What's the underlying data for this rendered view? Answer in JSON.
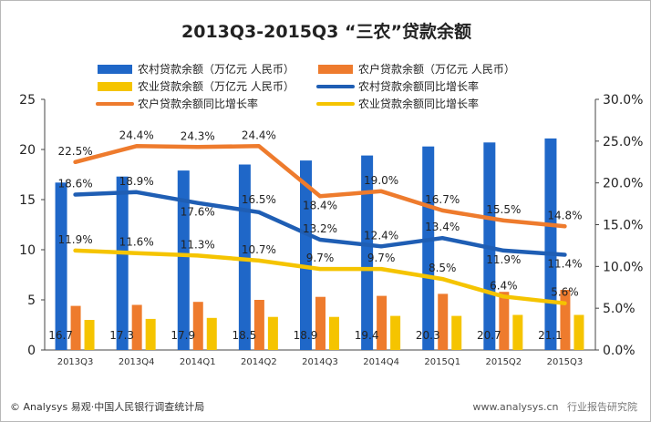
{
  "chart_data": {
    "type": "bar",
    "title": "2013Q3-2015Q3 “三农”贷款余额",
    "categories": [
      "2013Q3",
      "2013Q4",
      "2014Q1",
      "2014Q2",
      "2014Q3",
      "2014Q4",
      "2015Q1",
      "2015Q2",
      "2015Q3"
    ],
    "left_axis": {
      "min": 0,
      "max": 25,
      "ticks": [
        "0",
        "5",
        "10",
        "15",
        "20",
        "25"
      ]
    },
    "right_axis": {
      "min": 0,
      "max": 30,
      "ticks": [
        "0.0%",
        "5.0%",
        "10.0%",
        "15.0%",
        "20.0%",
        "25.0%",
        "30.0%"
      ]
    },
    "bar_series": [
      {
        "name": "农村贷款余额（万亿元 人民币）",
        "color": "#1f67c8",
        "values": [
          16.7,
          17.3,
          17.9,
          18.5,
          18.9,
          19.4,
          20.3,
          20.7,
          21.1
        ],
        "labels": [
          "16.7",
          "17.3",
          "17.9",
          "18.5",
          "18.9",
          "19.4",
          "20.3",
          "20.7",
          "21.1"
        ]
      },
      {
        "name": "农户贷款余额（万亿元 人民币）",
        "color": "#ee7b2d",
        "values": [
          4.4,
          4.5,
          4.8,
          5.0,
          5.3,
          5.4,
          5.6,
          5.8,
          6.0
        ]
      },
      {
        "name": "农业贷款余额（万亿元 人民币）",
        "color": "#f5c400",
        "values": [
          3.0,
          3.1,
          3.2,
          3.3,
          3.3,
          3.4,
          3.4,
          3.5,
          3.5
        ]
      }
    ],
    "line_series": [
      {
        "name": "农村贷款余额同比增长率",
        "color": "#1f5eb4",
        "values": [
          18.6,
          18.9,
          17.6,
          16.5,
          13.2,
          12.4,
          13.4,
          11.9,
          11.4
        ],
        "labels": [
          "18.6%",
          "18.9%",
          "17.6%",
          "16.5%",
          "13.2%",
          "12.4%",
          "13.4%",
          "11.9%",
          "11.4%"
        ]
      },
      {
        "name": "农户贷款余额同比增长率",
        "color": "#ee7b2d",
        "values": [
          22.5,
          24.4,
          24.3,
          24.4,
          18.4,
          19.0,
          16.7,
          15.5,
          14.8
        ],
        "labels": [
          "22.5%",
          "24.4%",
          "24.3%",
          "24.4%",
          "18.4%",
          "19.0%",
          "16.7%",
          "15.5%",
          "14.8%"
        ]
      },
      {
        "name": "农业贷款余额同比增长率",
        "color": "#f5c400",
        "values": [
          11.9,
          11.6,
          11.3,
          10.7,
          9.7,
          9.7,
          8.5,
          6.4,
          5.6
        ],
        "labels": [
          "11.9%",
          "11.6%",
          "11.3%",
          "10.7%",
          "9.7%",
          "9.7%",
          "8.5%",
          "6.4%",
          "5.6%"
        ]
      }
    ],
    "legend_placement": "top",
    "grid": false
  },
  "footer": {
    "source": "© Analysys 易观·中国人民银行调查统计局",
    "site": "www.analysys.cn",
    "watermark": "行业报告研究院"
  }
}
